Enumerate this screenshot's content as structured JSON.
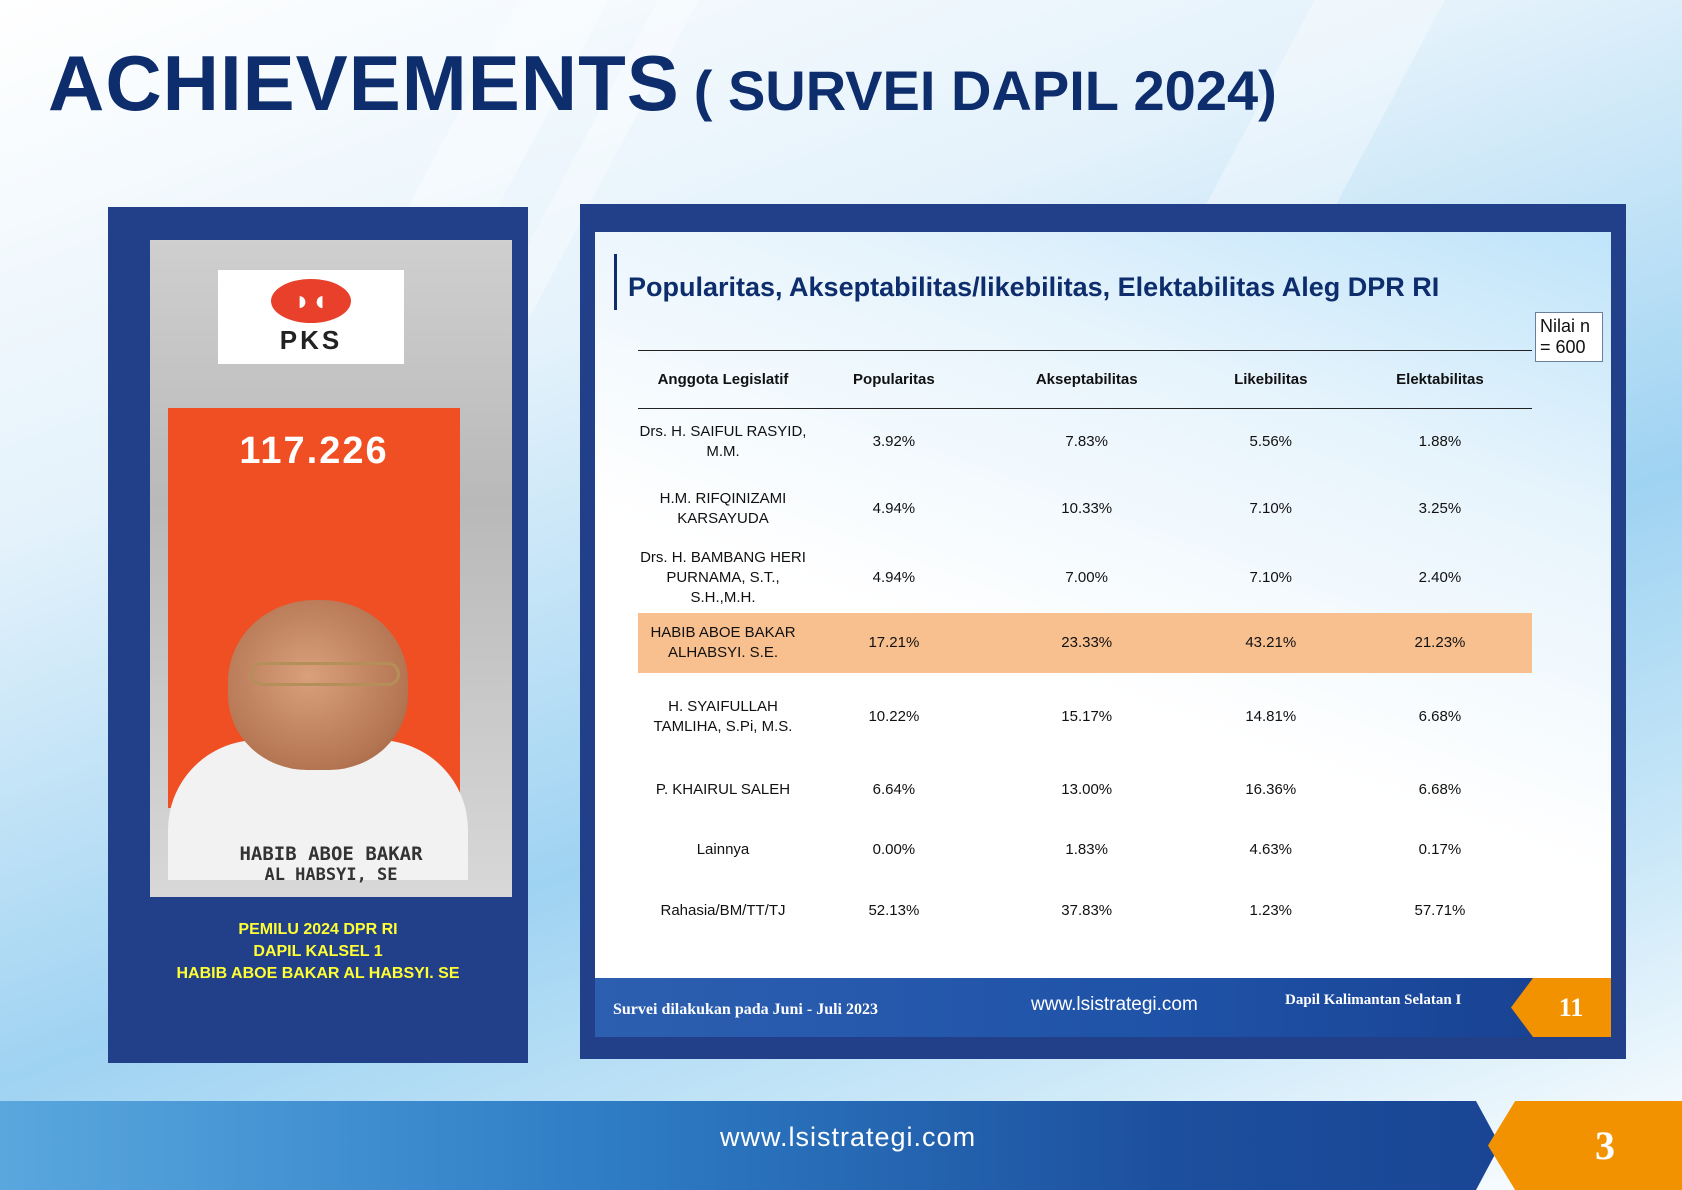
{
  "page": {
    "title_main": "ACHIEVEMENTS",
    "title_sub": "( SURVEI DAPIL 2024)",
    "footer_url": "www.lsistrategi.com",
    "page_number": "3"
  },
  "left": {
    "logo_text": "PKS",
    "vote_count": "117.226",
    "poster_name_line1": "HABIB ABOE BAKAR",
    "poster_name_line2": "AL HABSYI, SE",
    "caption": [
      "PEMILU 2024 DPR RI",
      "DAPIL KALSEL 1",
      "HABIB ABOE BAKAR AL HABSYI. SE"
    ]
  },
  "slide": {
    "title": "Popularitas, Akseptabilitas/likebilitas, Elektabilitas  Aleg DPR RI",
    "nilai": "Nilai n = 600",
    "footer_note": "Survei dilakukan pada Juni  - Juli 2023",
    "footer_url": "www.lsistrategi.com",
    "footer_dapil": "Dapil  Kalimantan Selatan I",
    "page_number": "11"
  },
  "table": {
    "headers": [
      "Anggota Legislatif",
      "Popularitas",
      "Akseptabilitas",
      "Likebilitas",
      "Elektabilitas"
    ],
    "rows": [
      {
        "name": "Drs. H. SAIFUL RASYID, M.M.",
        "values": [
          "3.92%",
          "7.83%",
          "5.56%",
          "1.88%"
        ]
      },
      {
        "name": "H.M. RIFQINIZAMI KARSAYUDA",
        "values": [
          "4.94%",
          "10.33%",
          "7.10%",
          "3.25%"
        ]
      },
      {
        "name": "Drs. H. BAMBANG HERI PURNAMA, S.T., S.H.,M.H.",
        "values": [
          "4.94%",
          "7.00%",
          "7.10%",
          "2.40%"
        ]
      },
      {
        "name": "HABIB ABOE BAKAR ALHABSYI. S.E.",
        "values": [
          "17.21%",
          "23.33%",
          "43.21%",
          "21.23%"
        ]
      },
      {
        "name": "H. SYAIFULLAH TAMLIHA, S.Pi, M.S.",
        "values": [
          "10.22%",
          "15.17%",
          "14.81%",
          "6.68%"
        ]
      },
      {
        "name": "P. KHAIRUL SALEH",
        "values": [
          "6.64%",
          "13.00%",
          "16.36%",
          "6.68%"
        ]
      },
      {
        "name": "Lainnya",
        "values": [
          "0.00%",
          "1.83%",
          "4.63%",
          "0.17%"
        ]
      },
      {
        "name": "Rahasia/BM/TT/TJ",
        "values": [
          "52.13%",
          "37.83%",
          "1.23%",
          "57.71%"
        ]
      }
    ]
  },
  "colors": {
    "navy": "#0d2d6c",
    "panel": "#22408a",
    "highlight": "#f9c08f",
    "orange": "#f39200",
    "caption_yellow": "#ffff33"
  }
}
